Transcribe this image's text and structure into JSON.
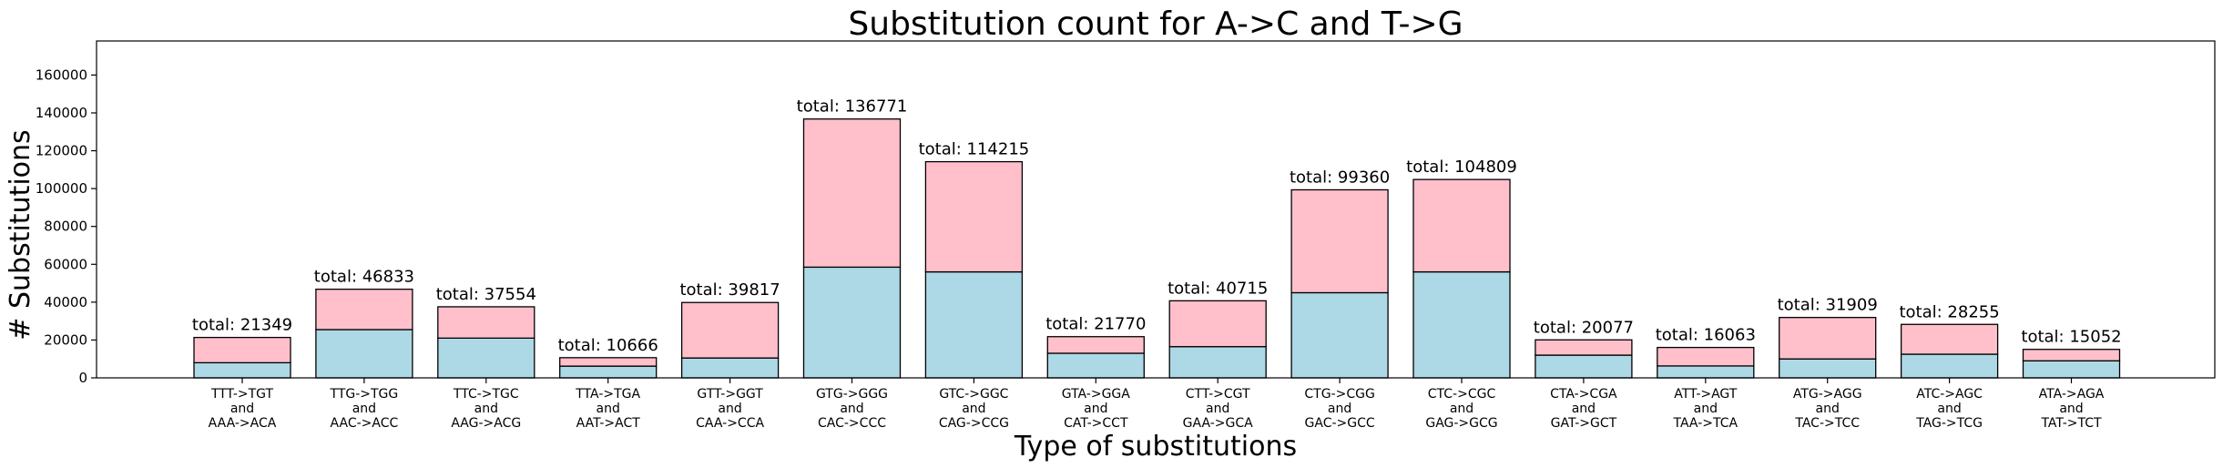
{
  "chart_data": {
    "type": "bar",
    "stacked": true,
    "title": "Substitution count for A->C and T->G",
    "xlabel": "Type of substitutions",
    "ylabel": "# Substitutions",
    "ylim": [
      0,
      178000
    ],
    "yticks": [
      0,
      20000,
      40000,
      60000,
      80000,
      100000,
      120000,
      140000,
      160000
    ],
    "categories": [
      [
        "TTT->TGT",
        "and",
        "AAA->ACA"
      ],
      [
        "TTG->TGG",
        "and",
        "AAC->ACC"
      ],
      [
        "TTC->TGC",
        "and",
        "AAG->ACG"
      ],
      [
        "TTA->TGA",
        "and",
        "AAT->ACT"
      ],
      [
        "GTT->GGT",
        "and",
        "CAA->CCA"
      ],
      [
        "GTG->GGG",
        "and",
        "CAC->CCC"
      ],
      [
        "GTC->GGC",
        "and",
        "CAG->CCG"
      ],
      [
        "GTA->GGA",
        "and",
        "CAT->CCT"
      ],
      [
        "CTT->CGT",
        "and",
        "GAA->GCA"
      ],
      [
        "CTG->CGG",
        "and",
        "GAC->GCC"
      ],
      [
        "CTC->CGC",
        "and",
        "GAG->GCG"
      ],
      [
        "CTA->CGA",
        "and",
        "GAT->GCT"
      ],
      [
        "ATT->AGT",
        "and",
        "TAA->TCA"
      ],
      [
        "ATG->AGG",
        "and",
        "TAC->TCC"
      ],
      [
        "ATC->AGC",
        "and",
        "TAG->TCG"
      ],
      [
        "ATA->AGA",
        "and",
        "TAT->TCT"
      ]
    ],
    "series": [
      {
        "color": "#add8e6",
        "values": [
          8000,
          25500,
          21000,
          6200,
          10500,
          58500,
          56000,
          13000,
          16500,
          45000,
          56000,
          12000,
          6300,
          10000,
          12500,
          9000
        ]
      },
      {
        "color": "#ffc0cb",
        "values": [
          13349,
          21333,
          16554,
          4466,
          29317,
          78271,
          58215,
          8770,
          24215,
          54360,
          48809,
          8077,
          9763,
          21909,
          15755,
          6052
        ]
      }
    ],
    "totals": [
      21349,
      46833,
      37554,
      10666,
      39817,
      136771,
      114215,
      21770,
      40715,
      99360,
      104809,
      20077,
      16063,
      31909,
      28255,
      15052
    ],
    "total_prefix": "total: ",
    "grid": false,
    "legend": "none"
  }
}
